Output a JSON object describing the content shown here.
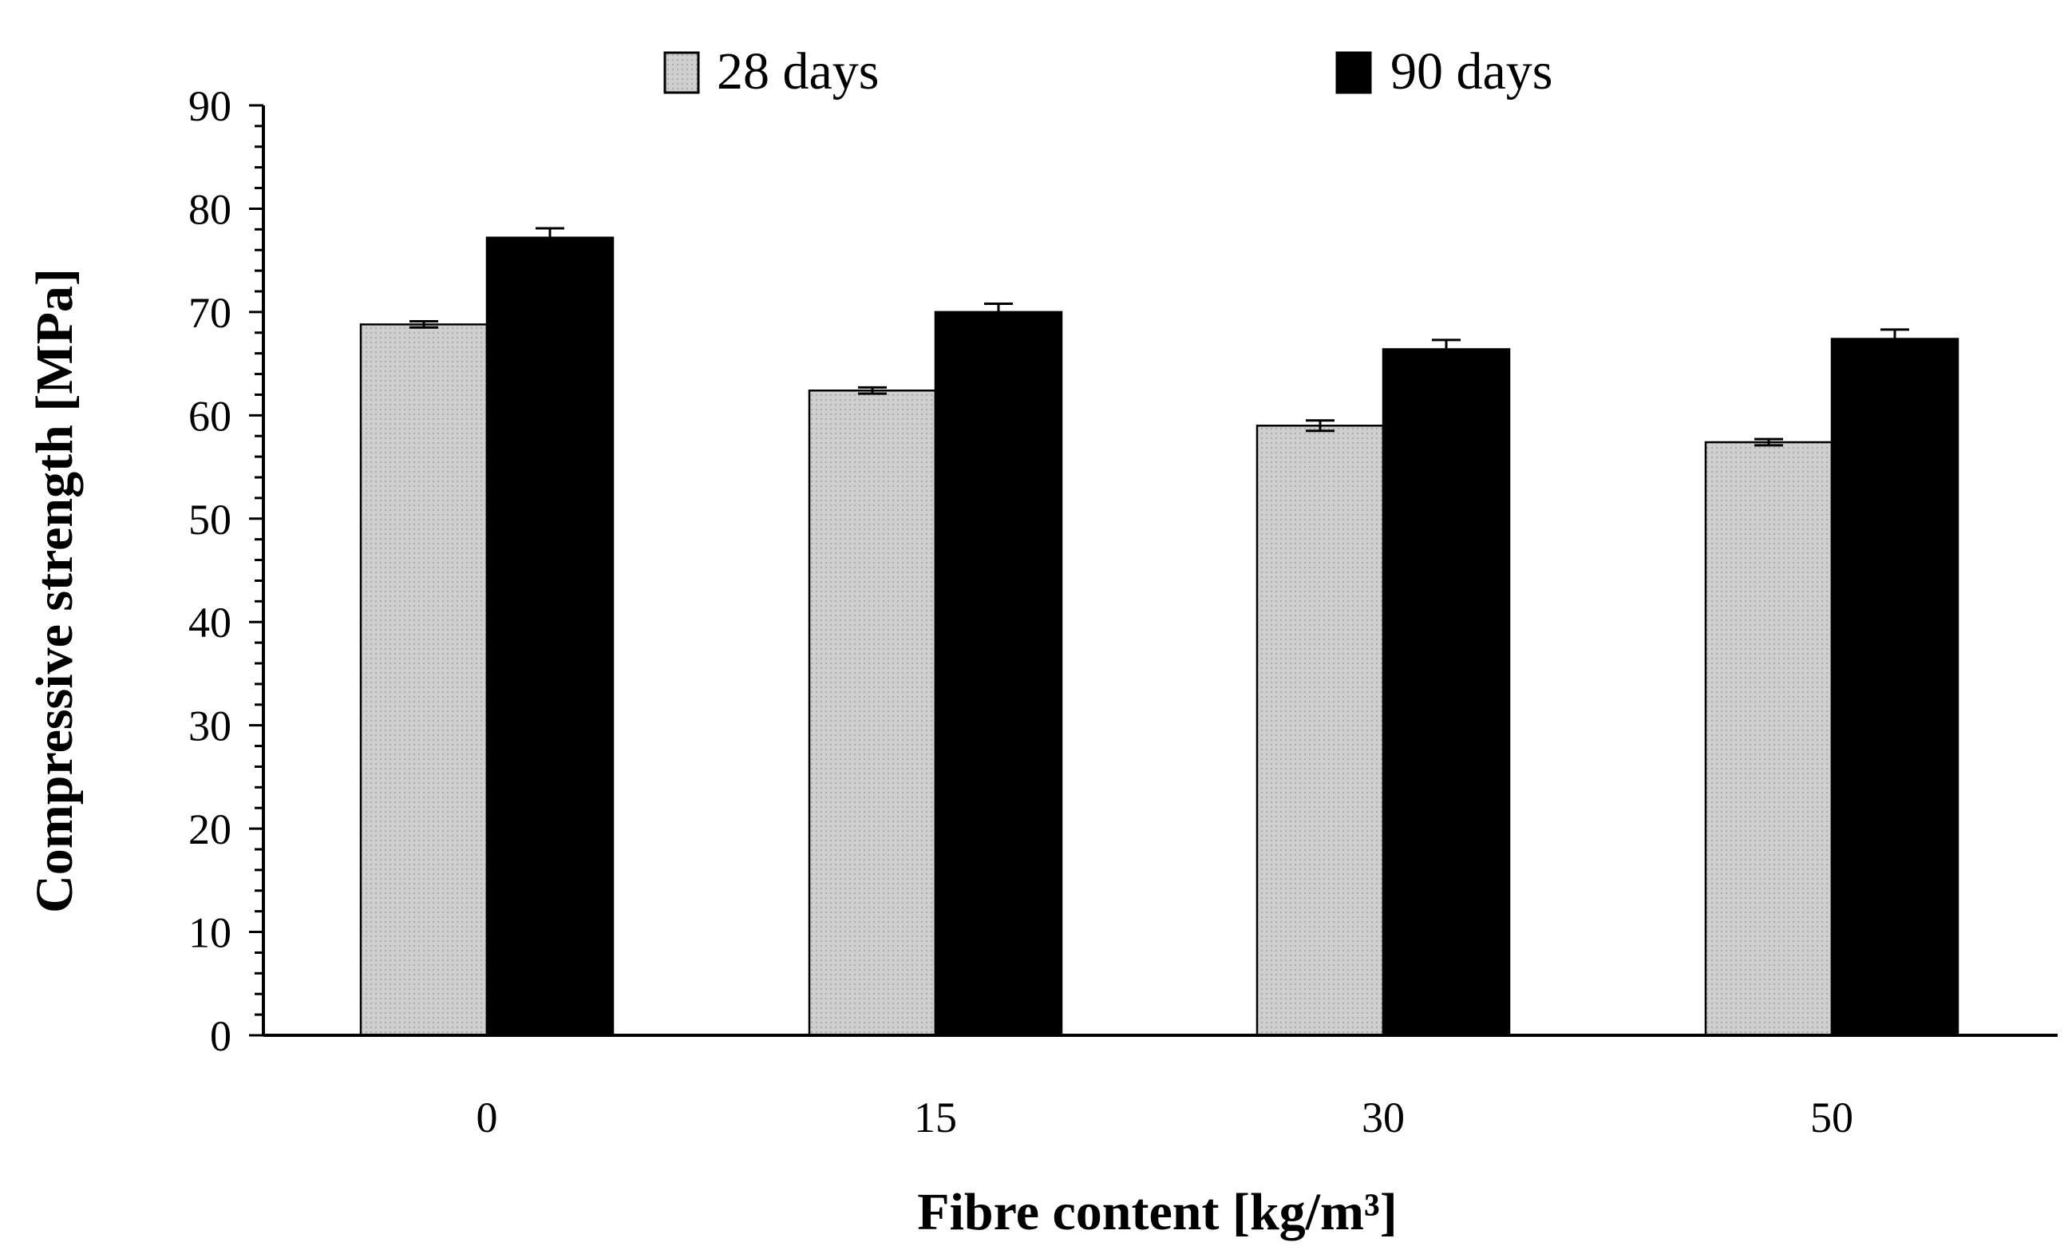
{
  "chart_data": {
    "type": "bar",
    "title": "",
    "xlabel": "Fibre content [kg/m³]",
    "ylabel": "Compressive strength [MPa]",
    "categories": [
      "0",
      "15",
      "30",
      "50"
    ],
    "ylim": [
      0,
      90
    ],
    "yticks": [
      0,
      10,
      20,
      30,
      40,
      50,
      60,
      70,
      80,
      90
    ],
    "grid": false,
    "legend_position": "top",
    "series": [
      {
        "name": "28 days",
        "color": "#c8c8c8",
        "values": [
          68.8,
          62.4,
          59.0,
          57.4
        ],
        "error": [
          0.3,
          0.3,
          0.5,
          0.3
        ]
      },
      {
        "name": "90 days",
        "color": "#000000",
        "values": [
          77.2,
          70.0,
          66.4,
          67.4
        ],
        "error": [
          0.9,
          0.8,
          0.9,
          0.9
        ]
      }
    ]
  }
}
